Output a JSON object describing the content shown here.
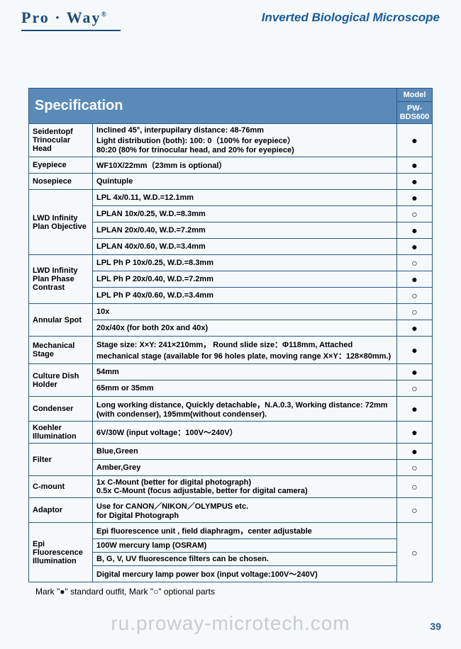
{
  "logo_text": "Pro · Way",
  "logo_reg": "®",
  "page_title": "Inverted Biological Microscope",
  "spec_header": "Specification",
  "model_header": "Model",
  "model_value": "PW-BDS600",
  "rows": [
    {
      "cat": "Seidentopf Trinocular Head",
      "desc": "Inclined 45°, interpupilary distance: 48-76mm\nLight distribution (both): 100: 0（100% for eyepiece）\n80:20 (80% for trinocular head, and 20% for eyepiece)",
      "mark": "●",
      "catspan": 1
    },
    {
      "cat": "Eyepiece",
      "desc": "WF10X/22mm（23mm is optional）",
      "mark": "●",
      "catspan": 1
    },
    {
      "cat": "Nosepiece",
      "desc": "Quintuple",
      "mark": "●",
      "catspan": 1
    },
    {
      "cat": "LWD Infinity Plan Objective",
      "desc": "LPL 4x/0.11, W.D.=12.1mm",
      "mark": "●",
      "catspan": 4
    },
    {
      "desc": "LPLAN 10x/0.25, W.D.=8.3mm",
      "mark": "○"
    },
    {
      "desc": "LPLAN 20x/0.40, W.D.=7.2mm",
      "mark": "●"
    },
    {
      "desc": "LPLAN 40x/0.60, W.D.=3.4mm",
      "mark": "●"
    },
    {
      "cat": "LWD Infinity Plan Phase Contrast",
      "desc": "LPL Ph P 10x/0.25, W.D.=8.3mm",
      "mark": "○",
      "catspan": 3
    },
    {
      "desc": "LPL Ph P 20x/0.40, W.D.=7.2mm",
      "mark": "●"
    },
    {
      "desc": "LPL Ph P 40x/0.60, W.D.=3.4mm",
      "mark": "○"
    },
    {
      "cat": "Annular Spot",
      "desc": "10x",
      "mark": "○",
      "catspan": 2
    },
    {
      "desc": "20x/40x (for both 20x and 40x)",
      "mark": "●"
    },
    {
      "cat": "Mechanical Stage",
      "desc": "Stage size: X×Y: 241×210mm， Round slide size：Φ118mm, Attached mechanical stage (available for 96 holes plate, moving range X×Y：128×80mm.)",
      "mark": "●",
      "catspan": 1
    },
    {
      "cat": "Culture Dish Holder",
      "desc": "54mm",
      "mark": "●",
      "catspan": 2
    },
    {
      "desc": "65mm or 35mm",
      "mark": "○"
    },
    {
      "cat": "Condenser",
      "desc": "Long working distance, Quickly detachable，N.A.0.3, Working distance: 72mm (with condenser), 195mm(without condenser).",
      "mark": "●",
      "catspan": 1
    },
    {
      "cat": "Koehler Illumination",
      "desc": "6V/30W (input voltage：100V～240V）",
      "mark": "●",
      "catspan": 1
    },
    {
      "cat": "Filter",
      "desc": "Blue,Green",
      "mark": "●",
      "catspan": 2
    },
    {
      "desc": "Amber,Grey",
      "mark": "○"
    },
    {
      "cat": "C-mount",
      "desc": "1x C-Mount (better for digital photograph)\n0.5x C-Mount (focus adjustable, better for digital camera)",
      "mark": "○",
      "catspan": 1
    },
    {
      "cat": "Adaptor",
      "desc": "Use for CANON／NIKON／OLYMPUS etc.\nfor Digital Photograph",
      "mark": "○",
      "catspan": 1
    },
    {
      "cat": "Epi Fluorescence Illumination",
      "desc": "Epi fluorescence unit , field diaphragm，center adjustable",
      "mark": "○",
      "catspan": 4,
      "markspan": 4
    },
    {
      "desc": "100W mercury lamp (OSRAM)"
    },
    {
      "desc": "B, G, V, UV fluorescence filters can be chosen."
    },
    {
      "desc": "Digital mercury lamp power box (input voltage:100V～240V)"
    }
  ],
  "footer_note": "Mark \"●\" standard outfit,  Mark \"○\" optional parts",
  "watermark": "ru.proway-microtech.com",
  "page_number": "39"
}
